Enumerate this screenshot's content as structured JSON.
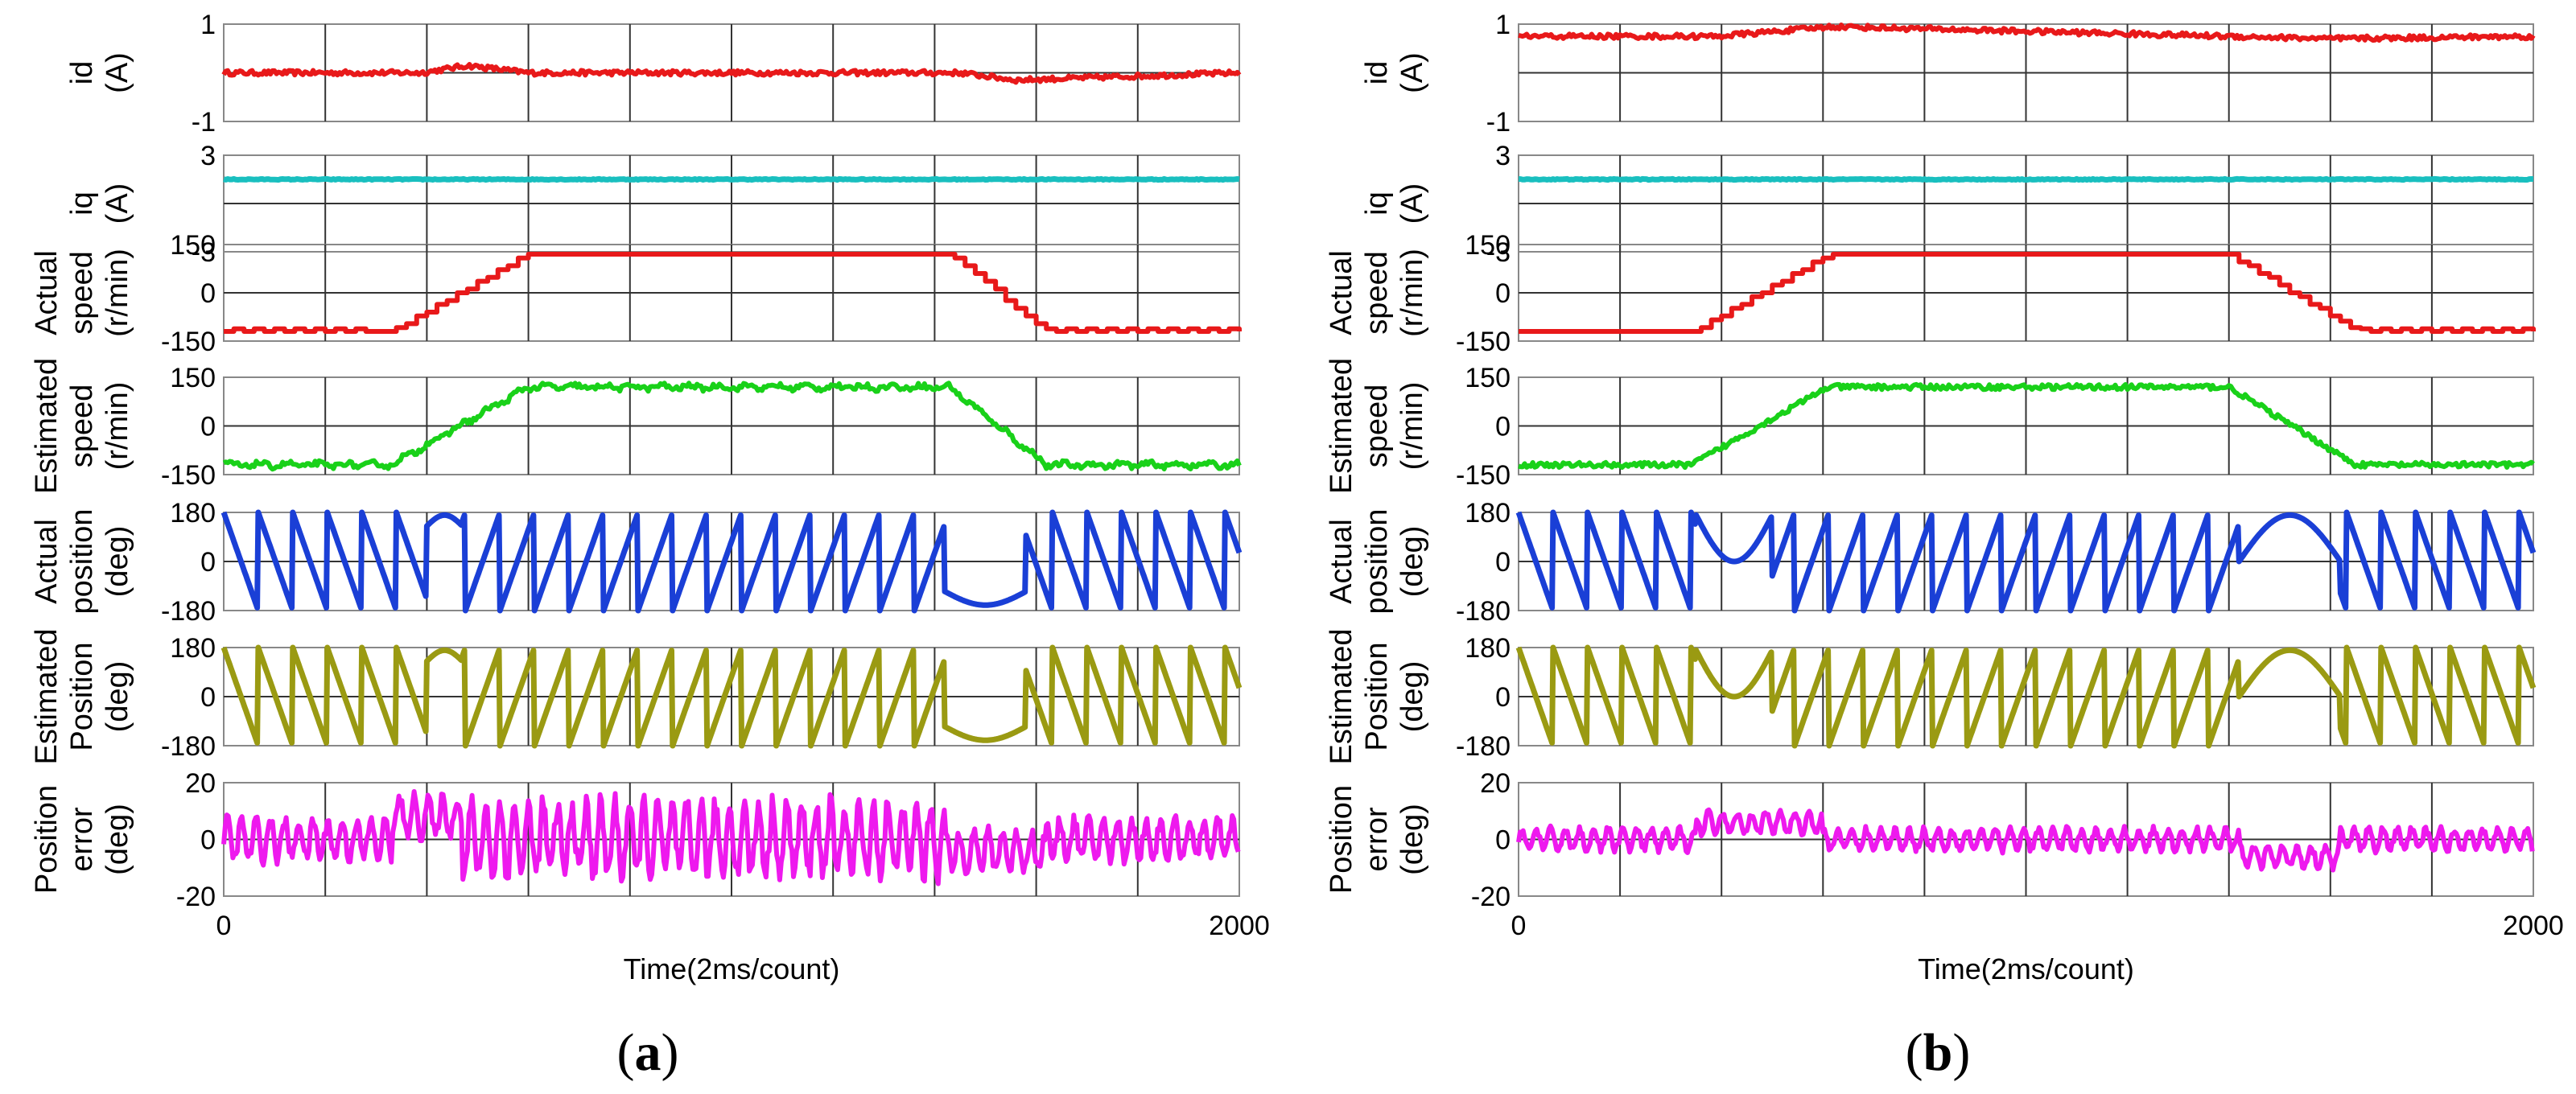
{
  "figure": {
    "panels": [
      {
        "label_open": "(",
        "label_letter": "a",
        "label_close": ")",
        "xlabel": "Time(2ms/count)",
        "x_ticks": [
          "0",
          "2000"
        ]
      },
      {
        "label_open": "(",
        "label_letter": "b",
        "label_close": ")",
        "xlabel": "Time(2ms/count)",
        "x_ticks": [
          "0",
          "2000"
        ]
      }
    ],
    "rows": [
      {
        "key": "id",
        "ylabel_lines": [
          "id",
          "(A)"
        ],
        "y_top": "1",
        "y_mid": "",
        "y_bottom": "-1",
        "color": "#e8191a"
      },
      {
        "key": "iq",
        "ylabel_lines": [
          "iq",
          "(A)"
        ],
        "y_top": "3",
        "y_mid": "",
        "y_bottom": "-3",
        "color": "#19bfbf"
      },
      {
        "key": "actual_speed",
        "ylabel_lines": [
          "Actual",
          "speed",
          "(r/min)"
        ],
        "y_top": "150",
        "y_mid": "0",
        "y_bottom": "-150",
        "color": "#e8191a"
      },
      {
        "key": "estimated_speed",
        "ylabel_lines": [
          "Estimated",
          "speed",
          "(r/min)"
        ],
        "y_top": "150",
        "y_mid": "0",
        "y_bottom": "-150",
        "color": "#19d119"
      },
      {
        "key": "actual_position",
        "ylabel_lines": [
          "Actual",
          "position",
          "(deg)"
        ],
        "y_top": "180",
        "y_mid": "0",
        "y_bottom": "-180",
        "color": "#1a3fd6"
      },
      {
        "key": "estimated_position",
        "ylabel_lines": [
          "Estimated",
          "Position",
          "(deg)"
        ],
        "y_top": "180",
        "y_mid": "0",
        "y_bottom": "-180",
        "color": "#9a9a12"
      },
      {
        "key": "position_error",
        "ylabel_lines": [
          "Position",
          "error",
          "(deg)"
        ],
        "y_top": "20",
        "y_mid": "0",
        "y_bottom": "-20",
        "color": "#ee19ee"
      }
    ]
  },
  "chart_data": [
    {
      "type": "line",
      "panel": "a",
      "xlabel": "Time(2ms/count)",
      "xlim": [
        0,
        2000
      ],
      "subplots": [
        {
          "name": "id",
          "ylim": [
            -1,
            1
          ],
          "x": [
            0,
            390,
            480,
            600,
            1450,
            1560,
            2000
          ],
          "y": [
            0.0,
            0.0,
            0.15,
            0.0,
            0.0,
            -0.15,
            0.0
          ]
        },
        {
          "name": "iq",
          "ylim": [
            -3,
            3
          ],
          "x": [
            0,
            2000
          ],
          "y": [
            1.5,
            1.5
          ]
        },
        {
          "name": "Actual speed",
          "ylim": [
            -150,
            150
          ],
          "x": [
            0,
            330,
            600,
            1430,
            1620,
            2000
          ],
          "y": [
            -120,
            -120,
            120,
            120,
            -120,
            -120
          ]
        },
        {
          "name": "Estimated speed",
          "ylim": [
            -150,
            150
          ],
          "x": [
            0,
            330,
            600,
            1430,
            1620,
            2000
          ],
          "y": [
            -120,
            -120,
            120,
            120,
            -120,
            -120
          ]
        },
        {
          "name": "Actual position",
          "ylim": [
            -180,
            180
          ],
          "pattern": "sawtooth wrap -180..180, descending before ~400 and after ~1580, ascending ~470-1420, slow arcs near 400-470 and 1450-1580"
        },
        {
          "name": "Estimated Position",
          "ylim": [
            -180,
            180
          ],
          "pattern": "sawtooth wrap -180..180 similar to actual position"
        },
        {
          "name": "Position error",
          "ylim": [
            -20,
            20
          ],
          "amplitude_approx": 15,
          "center": 0
        }
      ]
    },
    {
      "type": "line",
      "panel": "b",
      "xlabel": "Time(2ms/count)",
      "xlim": [
        0,
        2000
      ],
      "subplots": [
        {
          "name": "id",
          "ylim": [
            -1,
            1
          ],
          "x": [
            0,
            390,
            620,
            1400,
            1600,
            2000
          ],
          "y": [
            0.75,
            0.75,
            0.95,
            0.75,
            0.7,
            0.75
          ]
        },
        {
          "name": "iq",
          "ylim": [
            -3,
            3
          ],
          "x": [
            0,
            2000
          ],
          "y": [
            1.5,
            1.5
          ]
        },
        {
          "name": "Actual speed",
          "ylim": [
            -150,
            150
          ],
          "x": [
            0,
            340,
            610,
            1400,
            1650,
            2000
          ],
          "y": [
            -120,
            -120,
            120,
            120,
            -120,
            -120
          ]
        },
        {
          "name": "Estimated speed",
          "ylim": [
            -150,
            150
          ],
          "x": [
            0,
            340,
            610,
            1400,
            1650,
            2000
          ],
          "y": [
            -120,
            -120,
            120,
            120,
            -120,
            -120
          ]
        },
        {
          "name": "Actual position",
          "ylim": [
            -180,
            180
          ],
          "pattern": "sawtooth wrap -180..180 with slow arcs near 350-500 and 1420-1620"
        },
        {
          "name": "Estimated Position",
          "ylim": [
            -180,
            180
          ],
          "pattern": "sawtooth wrap -180..180 with slow arcs near 350-500 and 1420-1620"
        },
        {
          "name": "Position error",
          "ylim": [
            -20,
            20
          ],
          "amplitude_approx": 8,
          "center": 0
        }
      ]
    }
  ]
}
